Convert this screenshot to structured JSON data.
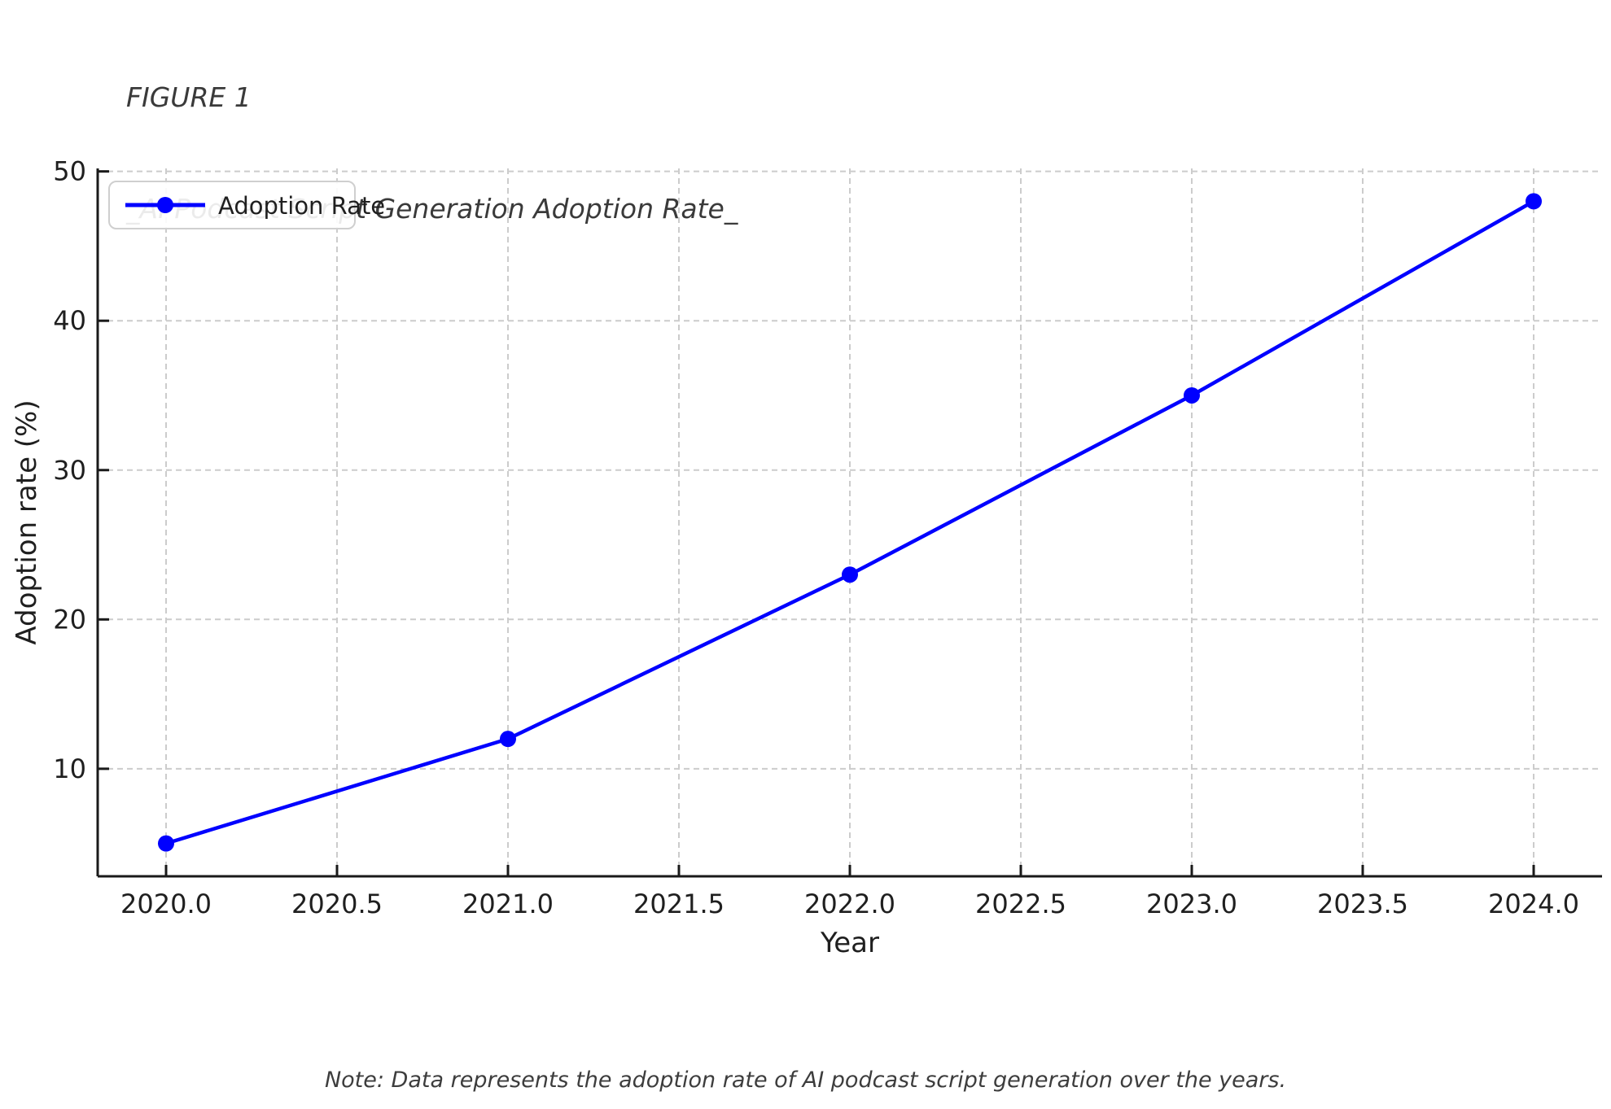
{
  "figure": {
    "title_line1": "FIGURE 1",
    "title_line2": "_AI Podcast Script Generation Adoption Rate_",
    "note": "Note: Data represents the adoption rate of AI podcast script generation over the years."
  },
  "chart_data": {
    "type": "line",
    "figure_label": "FIGURE 1",
    "title": "_AI Podcast Script Generation Adoption Rate_",
    "x": [
      2020,
      2021,
      2022,
      2023,
      2024
    ],
    "series": [
      {
        "name": "Adoption Rate",
        "color": "#0000ff",
        "values": [
          5,
          12,
          23,
          35,
          48
        ]
      }
    ],
    "xlabel": "Year",
    "ylabel": "Adoption rate (%)",
    "xlim": [
      2019.8,
      2024.2
    ],
    "ylim": [
      2.8,
      50.2
    ],
    "xticks": [
      2020.0,
      2020.5,
      2021.0,
      2021.5,
      2022.0,
      2022.5,
      2023.0,
      2023.5,
      2024.0
    ],
    "xtick_labels": [
      "2020.0",
      "2020.5",
      "2021.0",
      "2021.5",
      "2022.0",
      "2022.5",
      "2023.0",
      "2023.5",
      "2024.0"
    ],
    "yticks": [
      10,
      20,
      30,
      40,
      50
    ],
    "ytick_labels": [
      "10",
      "20",
      "30",
      "40",
      "50"
    ],
    "grid": true,
    "grid_style": "dashed",
    "grid_color": "#cccccc",
    "axis_color": "#1a1a1a",
    "tick_label_color": "#1f1f1f",
    "marker": "o",
    "legend": {
      "label": "Adoption Rate",
      "position": "upper-left"
    },
    "note": "Note: Data represents the adoption rate of AI podcast script generation over the years."
  }
}
